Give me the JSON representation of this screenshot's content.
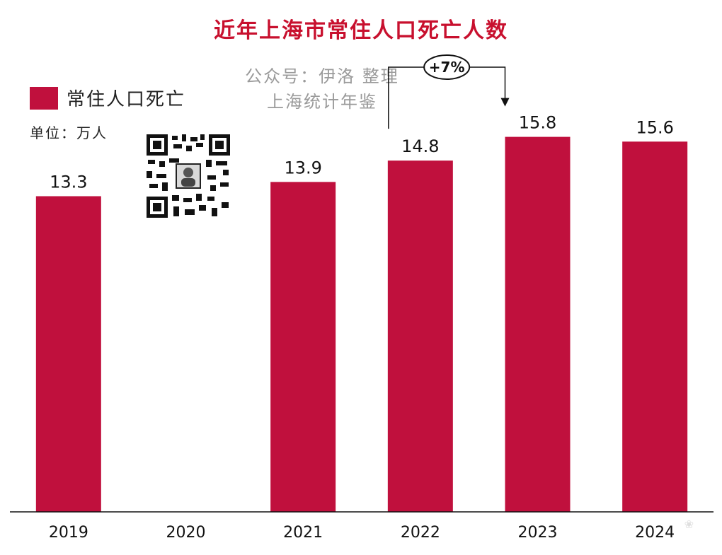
{
  "chart_data": {
    "type": "bar",
    "title": "近年上海市常住人口死亡人数",
    "categories": [
      "2019",
      "2020",
      "2021",
      "2022",
      "2023",
      "2024"
    ],
    "series": [
      {
        "name": "常住人口死亡",
        "values": [
          13.3,
          null,
          13.9,
          14.8,
          15.8,
          15.6
        ]
      }
    ],
    "data_labels": [
      "13.3",
      "",
      "13.9",
      "14.8",
      "15.8",
      "15.6"
    ],
    "ylim": [
      0,
      16.8
    ],
    "grid": false,
    "legend_position": "top-left",
    "unit_label": "单位：万人",
    "bar_color": "#c0103d",
    "annotation": {
      "text": "+7%",
      "from": "2022",
      "to": "2023"
    }
  },
  "source": {
    "line1": "公众号：伊洛 整理",
    "line2": "上海统计年鉴"
  },
  "colors": {
    "title": "#c8102e",
    "bar": "#c0103d",
    "source": "#9a9a9a"
  }
}
